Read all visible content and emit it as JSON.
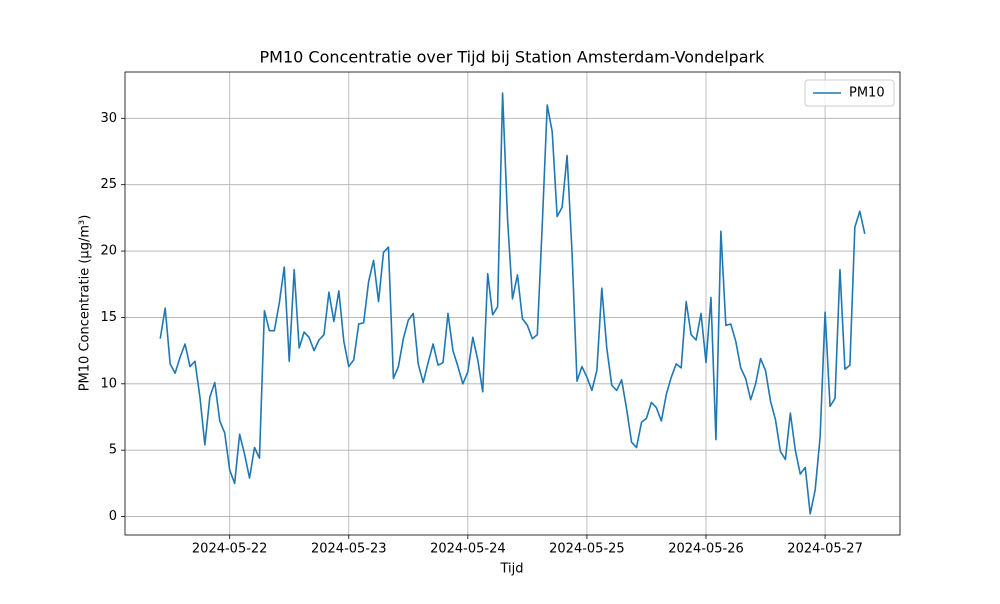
{
  "chart_data": {
    "type": "line",
    "title": "PM10 Concentratie over Tijd bij Station Amsterdam-Vondelpark",
    "x_label": "Tijd",
    "y_label": "PM10 Concentratie (µg/m³)",
    "x": [
      "2024-05-21 10:00",
      "2024-05-21 11:00",
      "2024-05-21 12:00",
      "2024-05-21 13:00",
      "2024-05-21 14:00",
      "2024-05-21 15:00",
      "2024-05-21 16:00",
      "2024-05-21 17:00",
      "2024-05-21 18:00",
      "2024-05-21 19:00",
      "2024-05-21 20:00",
      "2024-05-21 21:00",
      "2024-05-21 22:00",
      "2024-05-21 23:00",
      "2024-05-22 00:00",
      "2024-05-22 01:00",
      "2024-05-22 02:00",
      "2024-05-22 03:00",
      "2024-05-22 04:00",
      "2024-05-22 05:00",
      "2024-05-22 06:00",
      "2024-05-22 07:00",
      "2024-05-22 08:00",
      "2024-05-22 09:00",
      "2024-05-22 10:00",
      "2024-05-22 11:00",
      "2024-05-22 12:00",
      "2024-05-22 13:00",
      "2024-05-22 14:00",
      "2024-05-22 15:00",
      "2024-05-22 16:00",
      "2024-05-22 17:00",
      "2024-05-22 18:00",
      "2024-05-22 19:00",
      "2024-05-22 20:00",
      "2024-05-22 21:00",
      "2024-05-22 22:00",
      "2024-05-22 23:00",
      "2024-05-23 00:00",
      "2024-05-23 01:00",
      "2024-05-23 02:00",
      "2024-05-23 03:00",
      "2024-05-23 04:00",
      "2024-05-23 05:00",
      "2024-05-23 06:00",
      "2024-05-23 07:00",
      "2024-05-23 08:00",
      "2024-05-23 09:00",
      "2024-05-23 10:00",
      "2024-05-23 11:00",
      "2024-05-23 12:00",
      "2024-05-23 13:00",
      "2024-05-23 14:00",
      "2024-05-23 15:00",
      "2024-05-23 16:00",
      "2024-05-23 17:00",
      "2024-05-23 18:00",
      "2024-05-23 19:00",
      "2024-05-23 20:00",
      "2024-05-23 21:00",
      "2024-05-23 22:00",
      "2024-05-23 23:00",
      "2024-05-24 00:00",
      "2024-05-24 01:00",
      "2024-05-24 02:00",
      "2024-05-24 03:00",
      "2024-05-24 04:00",
      "2024-05-24 05:00",
      "2024-05-24 06:00",
      "2024-05-24 07:00",
      "2024-05-24 08:00",
      "2024-05-24 09:00",
      "2024-05-24 10:00",
      "2024-05-24 11:00",
      "2024-05-24 12:00",
      "2024-05-24 13:00",
      "2024-05-24 14:00",
      "2024-05-24 15:00",
      "2024-05-24 16:00",
      "2024-05-24 17:00",
      "2024-05-24 18:00",
      "2024-05-24 19:00",
      "2024-05-24 20:00",
      "2024-05-24 21:00",
      "2024-05-24 22:00",
      "2024-05-24 23:00",
      "2024-05-25 00:00",
      "2024-05-25 01:00",
      "2024-05-25 02:00",
      "2024-05-25 03:00",
      "2024-05-25 04:00",
      "2024-05-25 05:00",
      "2024-05-25 06:00",
      "2024-05-25 07:00",
      "2024-05-25 08:00",
      "2024-05-25 09:00",
      "2024-05-25 10:00",
      "2024-05-25 11:00",
      "2024-05-25 12:00",
      "2024-05-25 13:00",
      "2024-05-25 14:00",
      "2024-05-25 15:00",
      "2024-05-25 16:00",
      "2024-05-25 17:00",
      "2024-05-25 18:00",
      "2024-05-25 19:00",
      "2024-05-25 20:00",
      "2024-05-25 21:00",
      "2024-05-25 22:00",
      "2024-05-25 23:00",
      "2024-05-26 00:00",
      "2024-05-26 01:00",
      "2024-05-26 02:00",
      "2024-05-26 03:00",
      "2024-05-26 04:00",
      "2024-05-26 05:00",
      "2024-05-26 06:00",
      "2024-05-26 07:00",
      "2024-05-26 08:00",
      "2024-05-26 09:00",
      "2024-05-26 10:00",
      "2024-05-26 11:00",
      "2024-05-26 12:00",
      "2024-05-26 13:00",
      "2024-05-26 14:00",
      "2024-05-26 15:00",
      "2024-05-26 16:00",
      "2024-05-26 17:00",
      "2024-05-26 18:00",
      "2024-05-26 19:00",
      "2024-05-26 20:00",
      "2024-05-26 21:00",
      "2024-05-26 22:00",
      "2024-05-26 23:00",
      "2024-05-27 00:00",
      "2024-05-27 01:00",
      "2024-05-27 02:00",
      "2024-05-27 03:00",
      "2024-05-27 04:00",
      "2024-05-27 05:00",
      "2024-05-27 06:00",
      "2024-05-27 07:00",
      "2024-05-27 08:00"
    ],
    "series": [
      {
        "name": "PM10",
        "color": "#1f77b4",
        "values": [
          13.4,
          15.7,
          11.5,
          10.8,
          12.0,
          13.0,
          11.3,
          11.7,
          9.0,
          5.4,
          9.0,
          10.1,
          7.2,
          6.3,
          3.5,
          2.5,
          6.2,
          4.7,
          2.9,
          5.2,
          4.4,
          15.5,
          14.0,
          14.0,
          16.1,
          18.8,
          11.7,
          18.6,
          12.7,
          13.9,
          13.5,
          12.5,
          13.3,
          13.7,
          16.9,
          14.7,
          17.0,
          13.2,
          11.3,
          11.8,
          14.5,
          14.6,
          17.7,
          19.3,
          16.2,
          19.9,
          20.3,
          10.4,
          11.3,
          13.4,
          14.8,
          15.3,
          11.5,
          10.1,
          11.6,
          13.0,
          11.4,
          11.6,
          15.3,
          12.5,
          11.3,
          10.0,
          10.9,
          13.5,
          11.8,
          9.4,
          18.3,
          15.2,
          15.8,
          31.9,
          22.4,
          16.4,
          18.2,
          14.9,
          14.4,
          13.4,
          13.7,
          22.0,
          31.0,
          29.0,
          22.6,
          23.3,
          27.2,
          19.9,
          10.2,
          11.3,
          10.5,
          9.5,
          11.0,
          17.2,
          12.7,
          9.9,
          9.5,
          10.3,
          8.1,
          5.6,
          5.2,
          7.1,
          7.4,
          8.6,
          8.2,
          7.2,
          9.2,
          10.5,
          11.5,
          11.2,
          16.2,
          13.7,
          13.3,
          15.3,
          11.6,
          16.5,
          5.8,
          21.5,
          14.4,
          14.5,
          13.2,
          11.2,
          10.4,
          8.8,
          10.0,
          11.9,
          11.0,
          8.7,
          7.3,
          4.9,
          4.3,
          7.8,
          5.0,
          3.2,
          3.7,
          0.2,
          2.0,
          6.0,
          15.4,
          8.3,
          8.9,
          18.6,
          11.1,
          11.4,
          21.8,
          23.0,
          21.3
        ]
      }
    ],
    "xlim": [
      "2024-05-21 02:54",
      "2024-05-27 15:06"
    ],
    "xticks": [
      "2024-05-22",
      "2024-05-23",
      "2024-05-24",
      "2024-05-25",
      "2024-05-26",
      "2024-05-27"
    ],
    "ylim": [
      -1.39,
      33.49
    ],
    "yticks": [
      0,
      5,
      10,
      15,
      20,
      25,
      30
    ],
    "grid": true,
    "legend": "upper right"
  }
}
